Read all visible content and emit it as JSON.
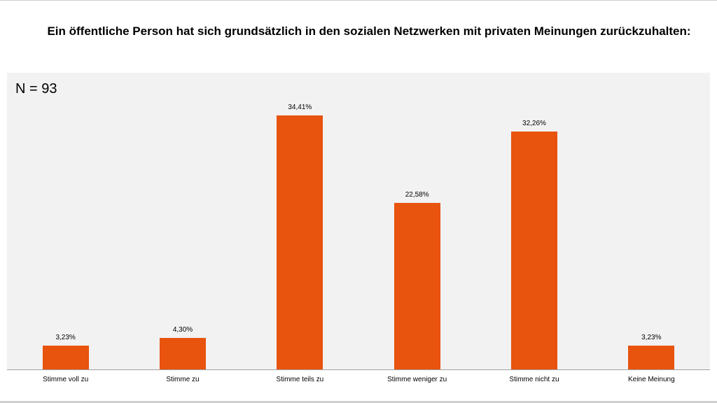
{
  "chart_data": {
    "type": "bar",
    "title": "Ein öffentliche Person hat sich grundsätzlich in den sozialen Netzwerken mit privaten Meinungen zurückzuhalten:",
    "annotation": "N = 93",
    "categories": [
      "Stimme voll zu",
      "Stimme zu",
      "Stimme teils zu",
      "Stimme weniger zu",
      "Stimme nicht zu",
      "Keine Meinung"
    ],
    "values": [
      3.23,
      4.3,
      34.41,
      22.58,
      32.26,
      3.23
    ],
    "data_labels": [
      "3,23%",
      "4,30%",
      "34,41%",
      "22,58%",
      "32,26%",
      "3,23%"
    ],
    "xlabel": "",
    "ylabel": "",
    "ylim": [
      0,
      40.2
    ],
    "grid": false,
    "legend": "none",
    "bar_color": "#e8530e",
    "plot_background": "#f2f2f2"
  }
}
